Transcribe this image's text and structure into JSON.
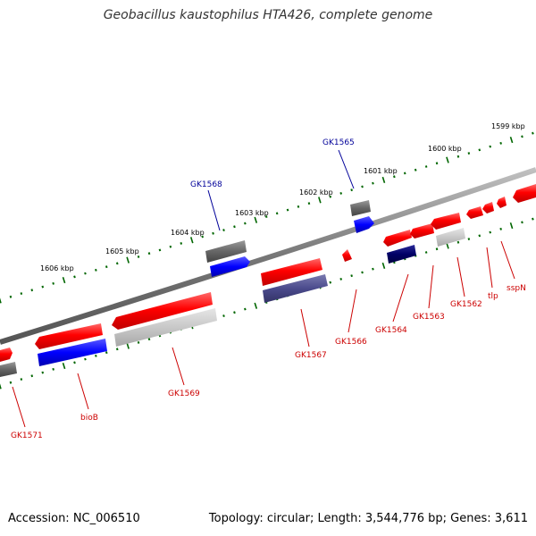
{
  "title": "Geobacillus kaustophilus HTA426, complete genome",
  "footer": {
    "accession": "Accession: NC_006510",
    "summary": "Topology: circular; Length: 3,544,776 bp; Genes: 3,611"
  },
  "kbp_labels": [
    "1606 kbp",
    "1605 kbp",
    "1604 kbp",
    "1603 kbp",
    "1602 kbp",
    "1601 kbp",
    "1600 kbp",
    "1599 kbp"
  ],
  "genes": [
    {
      "id": "GK1571",
      "color": "red"
    },
    {
      "id": "bioB",
      "color": "red"
    },
    {
      "id": "GK1569",
      "color": "red"
    },
    {
      "id": "GK1568",
      "color": "blue"
    },
    {
      "id": "GK1567",
      "color": "red"
    },
    {
      "id": "GK1566",
      "color": "red"
    },
    {
      "id": "GK1565",
      "color": "blue"
    },
    {
      "id": "GK1564",
      "color": "red"
    },
    {
      "id": "GK1563",
      "color": "red"
    },
    {
      "id": "GK1562",
      "color": "red"
    },
    {
      "id": "tlp",
      "color": "red"
    },
    {
      "id": "sspN",
      "color": "red"
    }
  ],
  "colors": {
    "gene_red": "#ff0000",
    "gene_blue": "#0000ff",
    "gene_navy": "#000066",
    "gene_gray": "#666666",
    "gene_lightgray": "#c8c8c8",
    "gene_purple": "#4a4a8c",
    "tick_green": "#006600",
    "label_red": "#cc0000",
    "label_blue": "#000099",
    "backbone": "#888888"
  }
}
